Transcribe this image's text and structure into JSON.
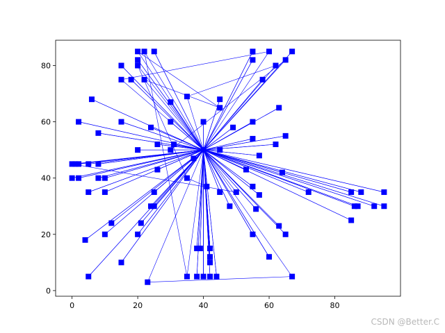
{
  "chart_data": {
    "type": "line",
    "style": "blue line with square markers (nodes connected in a route sequence)",
    "color": "#0000ff",
    "xlim": [
      -5,
      100
    ],
    "ylim": [
      -2,
      89
    ],
    "xticks": [
      0,
      20,
      40,
      60,
      80
    ],
    "yticks": [
      0,
      20,
      40,
      60,
      80
    ],
    "grid": false,
    "legend": false,
    "points": [
      [
        40,
        50
      ],
      [
        20,
        85
      ],
      [
        45,
        65
      ],
      [
        22,
        75
      ],
      [
        40,
        50
      ],
      [
        35,
        69
      ],
      [
        62,
        80
      ],
      [
        40,
        50
      ],
      [
        15,
        80
      ],
      [
        40,
        50
      ],
      [
        2,
        60
      ],
      [
        40,
        50
      ],
      [
        30,
        50
      ],
      [
        65,
        82
      ],
      [
        40,
        50
      ],
      [
        20,
        80
      ],
      [
        35,
        40
      ],
      [
        41,
        37
      ],
      [
        40,
        50
      ],
      [
        8,
        56
      ],
      [
        40,
        50
      ],
      [
        0,
        45
      ],
      [
        50,
        35
      ],
      [
        40,
        50
      ],
      [
        5,
        35
      ],
      [
        40,
        50
      ],
      [
        15,
        75
      ],
      [
        60,
        85
      ],
      [
        40,
        50
      ],
      [
        55,
        82
      ],
      [
        40,
        50
      ],
      [
        22,
        85
      ],
      [
        35,
        5
      ],
      [
        40,
        50
      ],
      [
        48,
        30
      ],
      [
        40,
        50
      ],
      [
        25,
        35
      ],
      [
        40,
        50
      ],
      [
        20,
        82
      ],
      [
        40,
        50
      ],
      [
        8,
        40
      ],
      [
        40,
        50
      ],
      [
        10,
        35
      ],
      [
        40,
        50
      ],
      [
        2,
        40
      ],
      [
        40,
        50
      ],
      [
        42,
        15
      ],
      [
        40,
        50
      ],
      [
        0,
        40
      ],
      [
        40,
        50
      ],
      [
        42,
        12
      ],
      [
        40,
        50
      ],
      [
        25,
        85
      ],
      [
        40,
        50
      ],
      [
        5,
        45
      ],
      [
        40,
        50
      ],
      [
        85,
        35
      ],
      [
        40,
        50
      ],
      [
        18,
        75
      ],
      [
        40,
        50
      ],
      [
        67,
        85
      ],
      [
        40,
        50
      ],
      [
        26,
        43
      ],
      [
        40,
        50
      ],
      [
        12,
        24
      ],
      [
        40,
        50
      ],
      [
        45,
        68
      ],
      [
        40,
        50
      ],
      [
        45,
        35
      ],
      [
        40,
        50
      ],
      [
        21,
        24
      ],
      [
        40,
        50
      ],
      [
        6,
        68
      ],
      [
        40,
        50
      ],
      [
        55,
        20
      ],
      [
        40,
        50
      ],
      [
        87,
        30
      ],
      [
        40,
        50
      ],
      [
        64,
        42
      ],
      [
        40,
        50
      ],
      [
        42,
        10
      ],
      [
        40,
        50
      ],
      [
        57,
        48
      ],
      [
        40,
        50
      ],
      [
        31,
        52
      ],
      [
        40,
        50
      ],
      [
        2,
        45
      ],
      [
        40,
        50
      ],
      [
        20,
        50
      ],
      [
        40,
        50
      ],
      [
        95,
        30
      ],
      [
        40,
        50
      ],
      [
        60,
        12
      ],
      [
        40,
        50
      ],
      [
        45,
        50
      ],
      [
        40,
        50
      ],
      [
        53,
        43
      ],
      [
        40,
        50
      ],
      [
        25,
        30
      ],
      [
        40,
        50
      ],
      [
        72,
        35
      ],
      [
        40,
        50
      ],
      [
        55,
        60
      ],
      [
        40,
        50
      ],
      [
        15,
        10
      ],
      [
        40,
        50
      ],
      [
        37,
        47
      ],
      [
        40,
        50
      ],
      [
        88,
        35
      ],
      [
        40,
        50
      ],
      [
        30,
        67
      ],
      [
        40,
        50
      ],
      [
        95,
        35
      ],
      [
        40,
        50
      ],
      [
        40,
        5
      ],
      [
        40,
        50
      ],
      [
        4,
        18
      ],
      [
        40,
        50
      ],
      [
        55,
        37
      ],
      [
        40,
        50
      ],
      [
        39,
        15
      ],
      [
        40,
        50
      ],
      [
        92,
        30
      ],
      [
        40,
        50
      ],
      [
        8,
        45
      ],
      [
        40,
        50
      ],
      [
        63,
        65
      ],
      [
        40,
        50
      ],
      [
        67,
        5
      ],
      [
        23,
        3
      ],
      [
        40,
        50
      ],
      [
        65,
        20
      ],
      [
        40,
        50
      ],
      [
        42,
        5
      ],
      [
        40,
        50
      ],
      [
        44,
        5
      ],
      [
        40,
        50
      ],
      [
        24,
        58
      ],
      [
        40,
        50
      ],
      [
        62,
        52
      ],
      [
        40,
        50
      ],
      [
        65,
        55
      ],
      [
        40,
        50
      ],
      [
        58,
        75
      ],
      [
        40,
        50
      ],
      [
        55,
        54
      ],
      [
        40,
        50
      ],
      [
        49,
        58
      ],
      [
        40,
        50
      ],
      [
        30,
        60
      ],
      [
        40,
        50
      ],
      [
        38,
        5
      ],
      [
        40,
        50
      ],
      [
        42,
        15
      ],
      [
        40,
        50
      ],
      [
        10,
        40
      ],
      [
        40,
        50
      ],
      [
        63,
        23
      ],
      [
        40,
        50
      ],
      [
        15,
        60
      ],
      [
        40,
        50
      ],
      [
        56,
        29
      ],
      [
        40,
        50
      ],
      [
        40,
        60
      ],
      [
        40,
        50
      ],
      [
        26,
        52
      ],
      [
        40,
        50
      ],
      [
        20,
        20
      ],
      [
        40,
        50
      ],
      [
        85,
        25
      ],
      [
        40,
        50
      ],
      [
        5,
        5
      ],
      [
        40,
        50
      ],
      [
        24,
        30
      ],
      [
        40,
        50
      ],
      [
        10,
        20
      ],
      [
        40,
        50
      ],
      [
        38,
        15
      ],
      [
        40,
        50
      ],
      [
        86,
        30
      ],
      [
        40,
        50
      ],
      [
        1,
        45
      ],
      [
        40,
        50
      ],
      [
        40,
        5
      ],
      [
        40,
        50
      ],
      [
        57,
        34
      ],
      [
        40,
        50
      ],
      [
        55,
        85
      ],
      [
        40,
        50
      ],
      [
        40,
        50
      ]
    ]
  },
  "watermark": "CSDN @Better.C"
}
